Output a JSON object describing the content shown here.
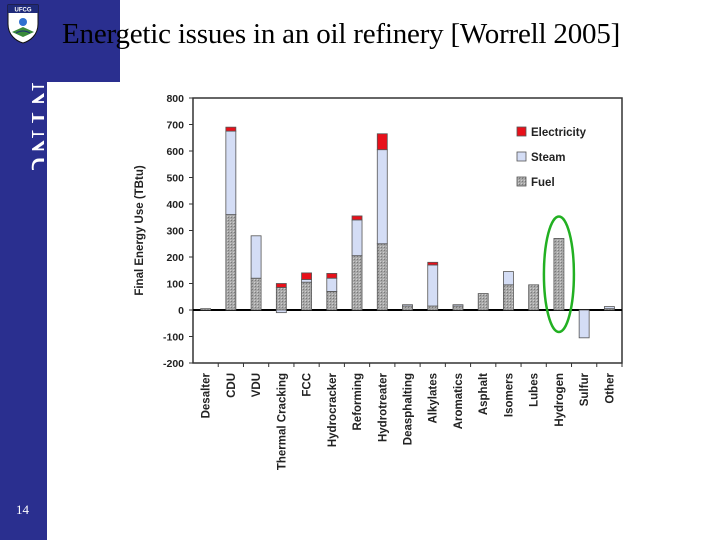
{
  "slide": {
    "title": "Energetic issues in an oil refinery [Worrell 2005]",
    "page_number": "14",
    "logo_text": "UFCG",
    "side_logo_text": "NTNU",
    "colors": {
      "sidebar": "#2a2f8f",
      "electricity": "#e8101a",
      "steam": "#d4ddf5",
      "fuel": "#9a9a9a",
      "highlight": "#22b022"
    }
  },
  "chart_data": {
    "type": "bar",
    "stacked": true,
    "ylabel": "Final Energy Use (TBtu)",
    "ylim": [
      -200,
      800
    ],
    "yticks": [
      800,
      700,
      600,
      500,
      400,
      300,
      200,
      100,
      0,
      -100,
      -200
    ],
    "grid": false,
    "legend_position": "top-right",
    "categories": [
      "Desalter",
      "CDU",
      "VDU",
      "Thermal Cracking",
      "FCC",
      "Hydrocracker",
      "Reforming",
      "Hydrotreater",
      "Deasphalting",
      "Alkylates",
      "Aromatics",
      "Asphalt",
      "Isomers",
      "Lubes",
      "Hydrogen",
      "Sulfur",
      "Other"
    ],
    "series": [
      {
        "name": "Fuel",
        "values": [
          5,
          360,
          120,
          85,
          105,
          70,
          205,
          250,
          15,
          15,
          15,
          62,
          95,
          95,
          270,
          -105,
          5
        ]
      },
      {
        "name": "Steam",
        "values": [
          0,
          315,
          160,
          -10,
          10,
          50,
          135,
          355,
          5,
          155,
          5,
          0,
          50,
          0,
          0,
          0,
          8
        ]
      },
      {
        "name": "Electricity",
        "values": [
          0,
          15,
          0,
          15,
          25,
          18,
          15,
          60,
          0,
          10,
          0,
          0,
          0,
          0,
          0,
          0,
          0
        ]
      }
    ],
    "highlight": "Hydrogen"
  }
}
